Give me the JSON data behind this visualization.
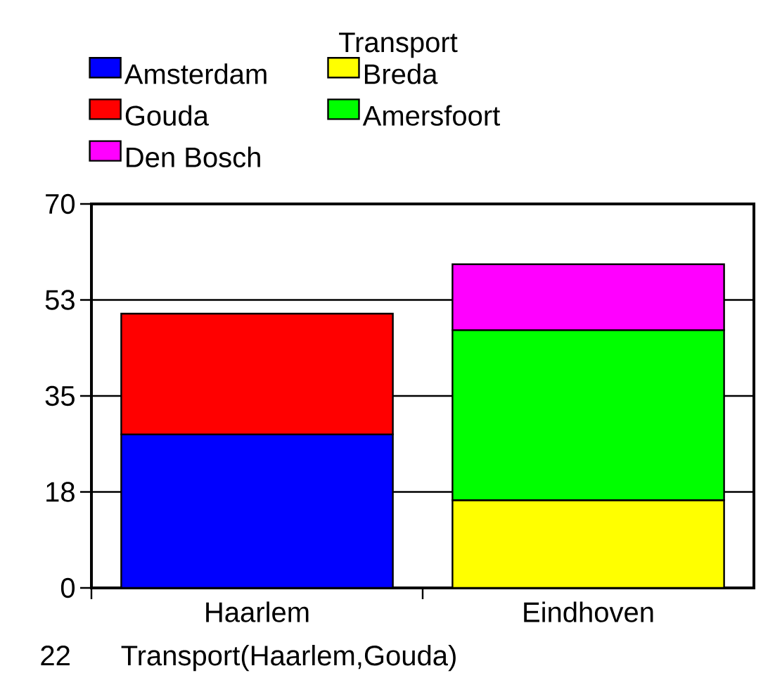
{
  "chart_data": {
    "type": "bar",
    "stacked": true,
    "categories": [
      "Haarlem",
      "Eindhoven"
    ],
    "series": [
      {
        "name": "Amsterdam",
        "color": "#0000ff",
        "values": [
          28,
          null
        ]
      },
      {
        "name": "Breda",
        "color": "#ffff00",
        "values": [
          null,
          16
        ]
      },
      {
        "name": "Gouda",
        "color": "#ff0000",
        "values": [
          22,
          null
        ]
      },
      {
        "name": "Amersfoort",
        "color": "#00ff00",
        "values": [
          null,
          31
        ]
      },
      {
        "name": "Den Bosch",
        "color": "#ff00ff",
        "values": [
          null,
          12
        ]
      }
    ],
    "ylim": [
      0,
      70
    ],
    "yticks": [
      0,
      {
        "value": 17.5,
        "label": "18"
      },
      35,
      {
        "value": 52.5,
        "label": "53"
      },
      70
    ],
    "grid": "y",
    "legend": "top",
    "legend_title": "Transport",
    "annotations": [
      "22",
      "Transport(Haarlem,Gouda)"
    ]
  }
}
